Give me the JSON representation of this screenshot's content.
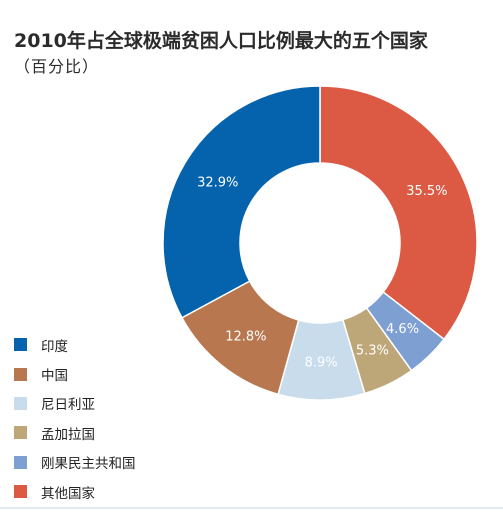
{
  "title": "2010年占全球极端贫困人口比例最大的五个国家",
  "subtitle": "（百分比）",
  "chart_data": {
    "type": "pie",
    "donut": true,
    "categories": [
      "其他国家",
      "刚果民主共和国",
      "孟加拉国",
      "尼日利亚",
      "中国",
      "印度"
    ],
    "values": [
      35.5,
      4.6,
      5.3,
      8.9,
      12.8,
      32.9
    ],
    "value_labels": [
      "35.5%",
      "4.6%",
      "5.3%",
      "8.9%",
      "12.8%",
      "32.9%"
    ],
    "colors": [
      "#dc5a43",
      "#7d9fd2",
      "#bda779",
      "#c8dcec",
      "#b8774e",
      "#0563ad"
    ],
    "legend": {
      "placement": "left-bottom",
      "items": [
        {
          "label": "印度",
          "color": "#0563ad"
        },
        {
          "label": "中国",
          "color": "#b8774e"
        },
        {
          "label": "尼日利亚",
          "color": "#c8dcec"
        },
        {
          "label": "孟加拉国",
          "color": "#bda779"
        },
        {
          "label": "刚果民主共和国",
          "color": "#7d9fd2"
        },
        {
          "label": "其他国家",
          "color": "#dc5a43"
        }
      ]
    }
  }
}
